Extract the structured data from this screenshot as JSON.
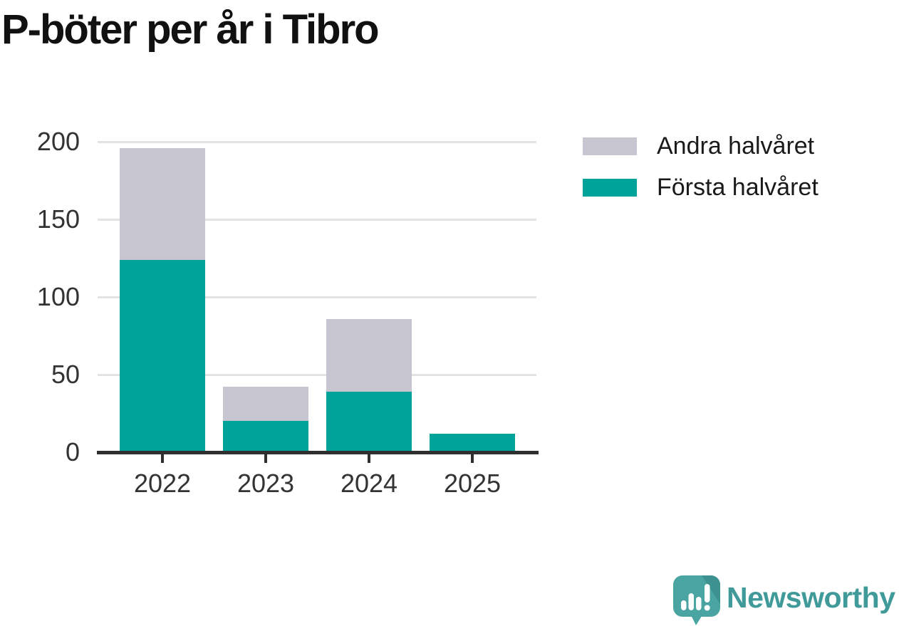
{
  "chart_data": {
    "type": "bar",
    "stacked": true,
    "title": "P-böter per år i Tibro",
    "categories": [
      "2022",
      "2023",
      "2024",
      "2025"
    ],
    "series": [
      {
        "name": "Första halvåret",
        "color": "#00a39a",
        "values": [
          124,
          20,
          39,
          12
        ]
      },
      {
        "name": "Andra halvåret",
        "color": "#c7c5cf",
        "values": [
          72,
          22,
          47,
          0
        ]
      }
    ],
    "xlabel": "",
    "ylabel": "",
    "ylim": [
      0,
      200
    ],
    "yticks": [
      0,
      50,
      100,
      150,
      200
    ],
    "grid": true,
    "legend_position": "top-right",
    "axis_color": "#2f2f2f",
    "gridline_color": "#e3e3e3"
  },
  "footer": {
    "brand": "Newsworthy",
    "brand_color": "#3f9a99",
    "icon": "newsworthy-bubble-chart-icon"
  }
}
